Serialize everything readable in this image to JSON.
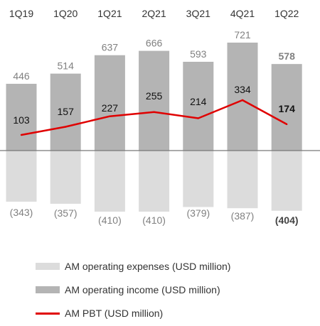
{
  "chart_data": {
    "type": "bar",
    "categories": [
      "1Q19",
      "1Q20",
      "1Q21",
      "2Q21",
      "3Q21",
      "4Q21",
      "1Q22"
    ],
    "series": [
      {
        "name": "AM operating expenses (USD million)",
        "kind": "bar",
        "values": [
          -343,
          -357,
          -410,
          -410,
          -379,
          -387,
          -404
        ],
        "labels": [
          "(343)",
          "(357)",
          "(410)",
          "(410)",
          "(379)",
          "(387)",
          "(404)"
        ]
      },
      {
        "name": "AM operating income (USD million)",
        "kind": "bar",
        "values": [
          446,
          514,
          637,
          666,
          593,
          721,
          578
        ],
        "labels": [
          "446",
          "514",
          "637",
          "666",
          "593",
          "721",
          "578"
        ]
      },
      {
        "name": "AM PBT (USD million)",
        "kind": "line",
        "values": [
          103,
          157,
          227,
          255,
          214,
          334,
          174
        ],
        "labels": [
          "103",
          "157",
          "227",
          "255",
          "214",
          "334",
          "174"
        ]
      }
    ],
    "highlight_last": true,
    "ylim": [
      -420,
      760
    ],
    "grid": false,
    "legend_position": "bottom-left"
  },
  "colors": {
    "expenses": "#dcdcdc",
    "income": "#b4b4b4",
    "pbt": "#e00000",
    "axis": "#777777",
    "text": "#333333",
    "muted_text": "#808080"
  }
}
